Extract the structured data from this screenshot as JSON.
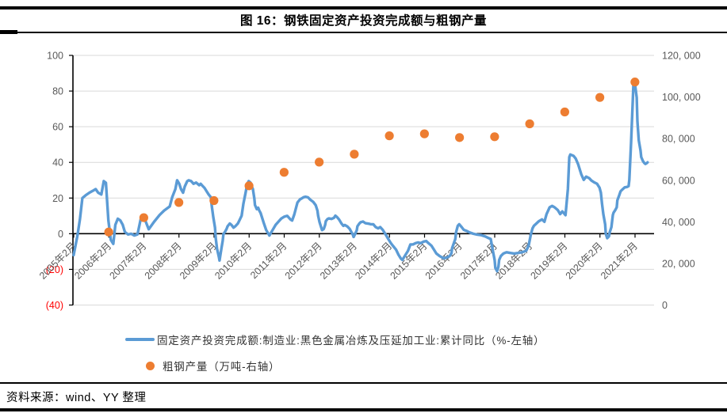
{
  "header": {
    "title": "图 16：钢铁固定资产投资完成额与粗钢产量"
  },
  "source_note": "资料来源：wind、YY 整理",
  "colors": {
    "line_series": "#5B9BD5",
    "scatter_series": "#ED7D31",
    "gridline": "#D9D9D9",
    "axis_line": "#000000",
    "axis_text": "#595959",
    "negative_tick_text": "#FF0000",
    "rule": "#000000"
  },
  "chart_data": {
    "type": "line",
    "title": "图 16：钢铁固定资产投资完成额与粗钢产量",
    "legend_position": "bottom",
    "grid": "horizontal",
    "x_axis": {
      "tick_years": [
        2005,
        2006,
        2007,
        2008,
        2009,
        2010,
        2011,
        2012,
        2013,
        2014,
        2015,
        2016,
        2017,
        2018,
        2019,
        2020,
        2021
      ],
      "tick_labels": [
        "2005年2月",
        "2006年2月",
        "2007年2月",
        "2008年2月",
        "2009年2月",
        "2010年2月",
        "2011年2月",
        "2012年2月",
        "2013年2月",
        "2014年2月",
        "2015年2月",
        "2016年2月",
        "2017年2月",
        "2018年2月",
        "2019年2月",
        "2020年2月",
        "2021年2月"
      ],
      "label_rotation_deg": -45
    },
    "y_left": {
      "min": -40,
      "max": 100,
      "step": 20,
      "tick_values": [
        100,
        80,
        60,
        40,
        20,
        0,
        -20,
        -40
      ],
      "tick_labels": [
        "100",
        "80",
        "60",
        "40",
        "20",
        "0",
        "(20)",
        "(40)"
      ]
    },
    "y_right": {
      "min": 0,
      "max": 120000,
      "step": 20000,
      "tick_values": [
        120000,
        100000,
        80000,
        60000,
        40000,
        20000,
        0
      ],
      "tick_labels": [
        "120, 000",
        "100, 000",
        "80, 000",
        "60, 000",
        "40, 000",
        "20, 000",
        "0"
      ]
    },
    "series": [
      {
        "name": "固定资产投资完成额:制造业:黑色金属冶炼及压延加工业:累计同比（%-左轴）",
        "type": "line",
        "axis": "left",
        "color": "#5B9BD5",
        "points": [
          [
            2005.08,
            -12
          ],
          [
            2005.19,
            -1
          ],
          [
            2005.26,
            8
          ],
          [
            2005.33,
            20
          ],
          [
            2005.42,
            21.5
          ],
          [
            2005.53,
            23
          ],
          [
            2005.62,
            24
          ],
          [
            2005.71,
            25
          ],
          [
            2005.78,
            23
          ],
          [
            2005.87,
            22
          ],
          [
            2005.94,
            29.5
          ],
          [
            2006.0,
            28.5
          ],
          [
            2006.07,
            7.5
          ],
          [
            2006.14,
            -3.5
          ],
          [
            2006.21,
            -5.7
          ],
          [
            2006.27,
            5
          ],
          [
            2006.34,
            8.4
          ],
          [
            2006.41,
            7.5
          ],
          [
            2006.48,
            5
          ],
          [
            2006.54,
            1
          ],
          [
            2006.63,
            -0.4
          ],
          [
            2006.72,
            0
          ],
          [
            2006.81,
            -1
          ],
          [
            2006.9,
            -0.4
          ],
          [
            2006.99,
            8
          ],
          [
            2007.08,
            9.5
          ],
          [
            2007.22,
            2.5
          ],
          [
            2007.37,
            6.6
          ],
          [
            2007.53,
            10.5
          ],
          [
            2007.66,
            13
          ],
          [
            2007.82,
            15.3
          ],
          [
            2007.89,
            20.5
          ],
          [
            2007.98,
            25
          ],
          [
            2008.03,
            30
          ],
          [
            2008.09,
            28
          ],
          [
            2008.14,
            25
          ],
          [
            2008.2,
            23
          ],
          [
            2008.25,
            26.5
          ],
          [
            2008.32,
            29.5
          ],
          [
            2008.36,
            30
          ],
          [
            2008.43,
            29.5
          ],
          [
            2008.5,
            28
          ],
          [
            2008.57,
            28.7
          ],
          [
            2008.66,
            27.2
          ],
          [
            2008.7,
            28
          ],
          [
            2008.77,
            26.5
          ],
          [
            2008.81,
            25.7
          ],
          [
            2008.88,
            23.5
          ],
          [
            2008.93,
            22
          ],
          [
            2008.99,
            20.5
          ],
          [
            2009.02,
            15.3
          ],
          [
            2009.06,
            9.4
          ],
          [
            2009.11,
            3.4
          ],
          [
            2009.13,
            -2.5
          ],
          [
            2009.17,
            -8.5
          ],
          [
            2009.22,
            -13
          ],
          [
            2009.24,
            -15
          ],
          [
            2009.29,
            -8.5
          ],
          [
            2009.33,
            -4
          ],
          [
            2009.35,
            -0.3
          ],
          [
            2009.4,
            1.2
          ],
          [
            2009.44,
            2.7
          ],
          [
            2009.47,
            4.2
          ],
          [
            2009.53,
            5.7
          ],
          [
            2009.58,
            4.9
          ],
          [
            2009.64,
            3.4
          ],
          [
            2009.69,
            4.2
          ],
          [
            2009.76,
            5.7
          ],
          [
            2009.8,
            7.2
          ],
          [
            2009.87,
            10.1
          ],
          [
            2009.92,
            16.8
          ],
          [
            2009.98,
            22.8
          ],
          [
            2010.03,
            28
          ],
          [
            2010.07,
            29.5
          ],
          [
            2010.12,
            28.7
          ],
          [
            2010.14,
            27.2
          ],
          [
            2010.19,
            25
          ],
          [
            2010.23,
            19.8
          ],
          [
            2010.25,
            16.1
          ],
          [
            2010.3,
            13.8
          ],
          [
            2010.34,
            14.6
          ],
          [
            2010.37,
            13.1
          ],
          [
            2010.41,
            11.6
          ],
          [
            2010.5,
            6
          ],
          [
            2010.57,
            2
          ],
          [
            2010.66,
            -1
          ],
          [
            2010.75,
            2
          ],
          [
            2010.84,
            5
          ],
          [
            2010.93,
            7
          ],
          [
            2011.0,
            8.5
          ],
          [
            2011.08,
            9.5
          ],
          [
            2011.17,
            10
          ],
          [
            2011.26,
            8
          ],
          [
            2011.31,
            7.4
          ],
          [
            2011.37,
            10.8
          ],
          [
            2011.42,
            14.5
          ],
          [
            2011.46,
            17.5
          ],
          [
            2011.53,
            19.2
          ],
          [
            2011.64,
            20.5
          ],
          [
            2011.69,
            20.7
          ],
          [
            2011.76,
            20.4
          ],
          [
            2011.82,
            19.2
          ],
          [
            2011.91,
            17.8
          ],
          [
            2011.98,
            16
          ],
          [
            2012.03,
            13
          ],
          [
            2012.05,
            10
          ],
          [
            2012.09,
            6.4
          ],
          [
            2012.16,
            2
          ],
          [
            2012.21,
            2.7
          ],
          [
            2012.25,
            4.9
          ],
          [
            2012.27,
            7.1
          ],
          [
            2012.32,
            8.3
          ],
          [
            2012.36,
            8.6
          ],
          [
            2012.43,
            8.3
          ],
          [
            2012.5,
            8.9
          ],
          [
            2012.54,
            10.1
          ],
          [
            2012.59,
            9.3
          ],
          [
            2012.65,
            7.9
          ],
          [
            2012.72,
            5.6
          ],
          [
            2012.77,
            4.4
          ],
          [
            2012.81,
            4.9
          ],
          [
            2012.88,
            4.1
          ],
          [
            2012.95,
            2.7
          ],
          [
            2012.99,
            1.2
          ],
          [
            2013.04,
            -0.6
          ],
          [
            2013.06,
            -1.8
          ],
          [
            2013.1,
            -0.3
          ],
          [
            2013.15,
            1.9
          ],
          [
            2013.17,
            4.1
          ],
          [
            2013.22,
            5.6
          ],
          [
            2013.26,
            6.4
          ],
          [
            2013.33,
            6.8
          ],
          [
            2013.4,
            5.9
          ],
          [
            2013.49,
            5.6
          ],
          [
            2013.55,
            5.3
          ],
          [
            2013.62,
            5.3
          ],
          [
            2013.69,
            3.7
          ],
          [
            2013.76,
            3
          ],
          [
            2013.82,
            3.7
          ],
          [
            2013.89,
            2.2
          ],
          [
            2013.96,
            0
          ],
          [
            2014.05,
            -3
          ],
          [
            2014.12,
            -5.2
          ],
          [
            2014.18,
            -6.7
          ],
          [
            2014.27,
            -8.9
          ],
          [
            2014.34,
            -11.8
          ],
          [
            2014.41,
            -14
          ],
          [
            2014.45,
            -14.7
          ],
          [
            2014.52,
            -12.5
          ],
          [
            2014.61,
            -9.6
          ],
          [
            2014.68,
            -6
          ],
          [
            2014.75,
            -6
          ],
          [
            2014.84,
            -5.2
          ],
          [
            2014.9,
            -4.9
          ],
          [
            2014.97,
            -5.3
          ],
          [
            2015.06,
            -4.4
          ],
          [
            2015.13,
            -4.1
          ],
          [
            2015.19,
            -5.2
          ],
          [
            2015.28,
            -6.7
          ],
          [
            2015.35,
            -8.9
          ],
          [
            2015.42,
            -11.1
          ],
          [
            2015.51,
            -12.5
          ],
          [
            2015.58,
            -13.3
          ],
          [
            2015.64,
            -13.8
          ],
          [
            2015.73,
            -13.3
          ],
          [
            2015.8,
            -12.5
          ],
          [
            2015.85,
            -11
          ],
          [
            2015.87,
            -8
          ],
          [
            2015.96,
            -3
          ],
          [
            2015.98,
            0.7
          ],
          [
            2016.03,
            4.4
          ],
          [
            2016.07,
            5.3
          ],
          [
            2016.14,
            3.7
          ],
          [
            2016.2,
            2.2
          ],
          [
            2016.29,
            1.5
          ],
          [
            2016.36,
            0.8
          ],
          [
            2016.47,
            0
          ],
          [
            2016.58,
            -0.5
          ],
          [
            2016.7,
            -0.8
          ],
          [
            2016.81,
            -1.5
          ],
          [
            2016.88,
            -2.2
          ],
          [
            2016.97,
            -3
          ],
          [
            2016.99,
            -5.2
          ],
          [
            2017.03,
            -9.6
          ],
          [
            2017.08,
            -14.7
          ],
          [
            2017.1,
            -19.2
          ],
          [
            2017.15,
            -21
          ],
          [
            2017.19,
            -18.5
          ],
          [
            2017.21,
            -14.7
          ],
          [
            2017.26,
            -12.5
          ],
          [
            2017.33,
            -11.1
          ],
          [
            2017.42,
            -10.4
          ],
          [
            2017.53,
            -10.8
          ],
          [
            2017.64,
            -11.1
          ],
          [
            2017.75,
            -10.8
          ],
          [
            2017.86,
            -10.4
          ],
          [
            2017.98,
            -9.6
          ],
          [
            2018.05,
            -6.7
          ],
          [
            2018.11,
            -0.8
          ],
          [
            2018.16,
            3
          ],
          [
            2018.2,
            4.4
          ],
          [
            2018.25,
            5.3
          ],
          [
            2018.34,
            7
          ],
          [
            2018.43,
            8
          ],
          [
            2018.5,
            6.7
          ],
          [
            2018.56,
            11
          ],
          [
            2018.65,
            14.8
          ],
          [
            2018.72,
            15.6
          ],
          [
            2018.79,
            14.8
          ],
          [
            2018.88,
            13.3
          ],
          [
            2018.95,
            11
          ],
          [
            2019.01,
            12.5
          ],
          [
            2019.1,
            10.4
          ],
          [
            2019.17,
            25
          ],
          [
            2019.21,
            43
          ],
          [
            2019.24,
            44.4
          ],
          [
            2019.33,
            43.7
          ],
          [
            2019.39,
            42.2
          ],
          [
            2019.46,
            39
          ],
          [
            2019.55,
            33.3
          ],
          [
            2019.62,
            30.2
          ],
          [
            2019.69,
            32
          ],
          [
            2019.78,
            31.1
          ],
          [
            2019.84,
            29.8
          ],
          [
            2019.91,
            28.9
          ],
          [
            2020.0,
            28
          ],
          [
            2020.07,
            25.8
          ],
          [
            2020.11,
            23
          ],
          [
            2020.14,
            17
          ],
          [
            2020.18,
            11
          ],
          [
            2020.23,
            5.3
          ],
          [
            2020.25,
            0
          ],
          [
            2020.29,
            -2.5
          ],
          [
            2020.34,
            -1.5
          ],
          [
            2020.36,
            0.7
          ],
          [
            2020.41,
            3.7
          ],
          [
            2020.45,
            10.4
          ],
          [
            2020.47,
            11.8
          ],
          [
            2020.52,
            13.3
          ],
          [
            2020.56,
            14.8
          ],
          [
            2020.58,
            18.7
          ],
          [
            2020.63,
            21.5
          ],
          [
            2020.67,
            23.7
          ],
          [
            2020.7,
            24.4
          ],
          [
            2020.79,
            26
          ],
          [
            2020.85,
            26.2
          ],
          [
            2020.9,
            26.7
          ],
          [
            2020.92,
            30.2
          ],
          [
            2020.97,
            51
          ],
          [
            2021.04,
            85
          ],
          [
            2021.08,
            84
          ],
          [
            2021.13,
            76.4
          ],
          [
            2021.15,
            63
          ],
          [
            2021.19,
            52.4
          ],
          [
            2021.24,
            46.7
          ],
          [
            2021.26,
            43
          ],
          [
            2021.31,
            40.7
          ],
          [
            2021.35,
            39.6
          ],
          [
            2021.38,
            39.1
          ],
          [
            2021.42,
            39.6
          ],
          [
            2021.44,
            40
          ]
        ]
      },
      {
        "name": "粗钢产量（万吨-右轴）",
        "type": "scatter",
        "axis": "right",
        "color": "#ED7D31",
        "x": [
          2006.08,
          2007.08,
          2008.08,
          2009.08,
          2010.08,
          2011.08,
          2012.08,
          2013.08,
          2014.08,
          2015.08,
          2016.08,
          2017.08,
          2018.08,
          2019.08,
          2020.08,
          2021.08
        ],
        "values": [
          35100,
          42000,
          49300,
          50200,
          57300,
          63800,
          68700,
          72500,
          81350,
          82300,
          80500,
          80900,
          87100,
          92800,
          99800,
          107200
        ]
      }
    ]
  }
}
